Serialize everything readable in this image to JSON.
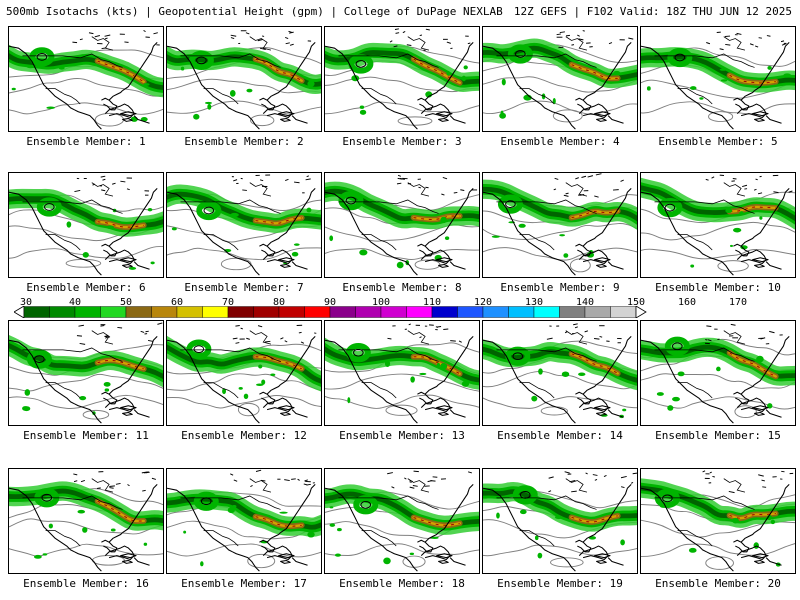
{
  "header": {
    "left": "500mb Isotachs (kts) | Geopotential Height (gpm) | College of DuPage NEXLAB",
    "right": "12Z GEFS | F102 Valid: 18Z THU JUN 12 2025"
  },
  "member_label_prefix": "Ensemble Member:",
  "members": [
    {
      "label": "Ensemble Member: 1",
      "seed": 1
    },
    {
      "label": "Ensemble Member: 2",
      "seed": 2
    },
    {
      "label": "Ensemble Member: 3",
      "seed": 3
    },
    {
      "label": "Ensemble Member: 4",
      "seed": 4
    },
    {
      "label": "Ensemble Member: 5",
      "seed": 5
    },
    {
      "label": "Ensemble Member: 6",
      "seed": 6
    },
    {
      "label": "Ensemble Member: 7",
      "seed": 7
    },
    {
      "label": "Ensemble Member: 8",
      "seed": 8
    },
    {
      "label": "Ensemble Member: 9",
      "seed": 9
    },
    {
      "label": "Ensemble Member: 10",
      "seed": 10
    },
    {
      "label": "Ensemble Member: 11",
      "seed": 11
    },
    {
      "label": "Ensemble Member: 12",
      "seed": 12
    },
    {
      "label": "Ensemble Member: 13",
      "seed": 13
    },
    {
      "label": "Ensemble Member: 14",
      "seed": 14
    },
    {
      "label": "Ensemble Member: 15",
      "seed": 15
    },
    {
      "label": "Ensemble Member: 16",
      "seed": 16
    },
    {
      "label": "Ensemble Member: 17",
      "seed": 17
    },
    {
      "label": "Ensemble Member: 18",
      "seed": 18
    },
    {
      "label": "Ensemble Member: 19",
      "seed": 19
    },
    {
      "label": "Ensemble Member: 20",
      "seed": 20
    }
  ],
  "colorbar": {
    "ticks": [
      "30",
      "40",
      "50",
      "60",
      "70",
      "80",
      "90",
      "100",
      "110",
      "120",
      "130",
      "140",
      "150",
      "160",
      "170"
    ],
    "colors": [
      "#006400",
      "#008a00",
      "#00b400",
      "#22d822",
      "#8b6914",
      "#b8860b",
      "#d4c000",
      "#ffff00",
      "#800000",
      "#a00000",
      "#c00000",
      "#ff0000",
      "#8b008b",
      "#b000b0",
      "#d000d0",
      "#ff00ff",
      "#0000cd",
      "#1e56ff",
      "#1e90ff",
      "#00bfff",
      "#00ffff",
      "#808080",
      "#a9a9a9",
      "#d3d3d3"
    ]
  },
  "colors": {
    "jet_core": "#006400",
    "jet_mid": "#00b400",
    "jet_light": "#33cc33",
    "jet_max": "#8b6914",
    "jet_peak": "#d4a000",
    "jet_red": "#a00000",
    "height_contour": "#808080",
    "coastline": "#000000",
    "border": "#000000"
  }
}
